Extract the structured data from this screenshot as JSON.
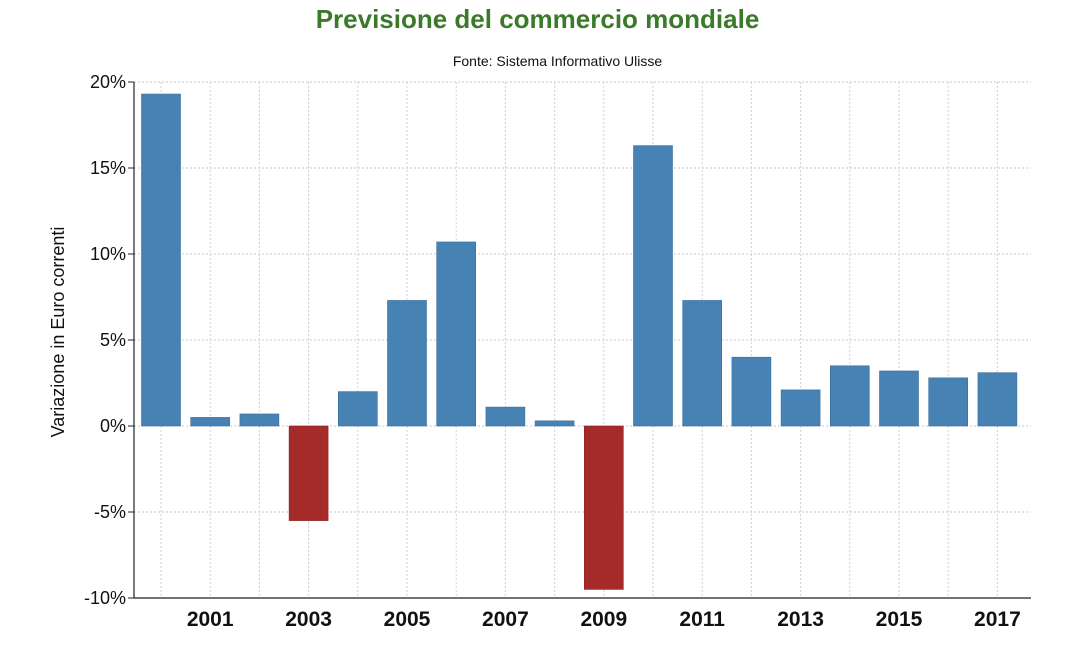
{
  "chart_data": {
    "type": "bar",
    "title": "Previsione del commercio mondiale",
    "subtitle": "Fonte: Sistema Informativo Ulisse",
    "ylabel": "Variazione in Euro correnti",
    "xlabel": "",
    "ylim": [
      -10,
      20
    ],
    "y_ticks": [
      "20%",
      "15%",
      "10%",
      "5%",
      "0%",
      "-5%",
      "-10%"
    ],
    "y_tick_values": [
      20,
      15,
      10,
      5,
      0,
      -5,
      -10
    ],
    "x_tick_labels": [
      "2001",
      "2003",
      "2005",
      "2007",
      "2009",
      "2011",
      "2013",
      "2015",
      "2017"
    ],
    "categories": [
      "2000",
      "2001",
      "2002",
      "2003",
      "2004",
      "2005",
      "2006",
      "2007",
      "2008",
      "2009",
      "2010",
      "2011",
      "2012",
      "2013",
      "2014",
      "2015",
      "2016",
      "2017"
    ],
    "values": [
      19.3,
      0.5,
      0.7,
      -5.5,
      2.0,
      7.3,
      10.7,
      1.1,
      0.3,
      -9.5,
      16.3,
      7.3,
      4.0,
      2.1,
      3.5,
      3.2,
      2.8,
      3.1
    ],
    "grid": true,
    "colors": {
      "positive": "#4682b4",
      "negative": "#a52a2a",
      "title": "#3a7a2a"
    }
  }
}
